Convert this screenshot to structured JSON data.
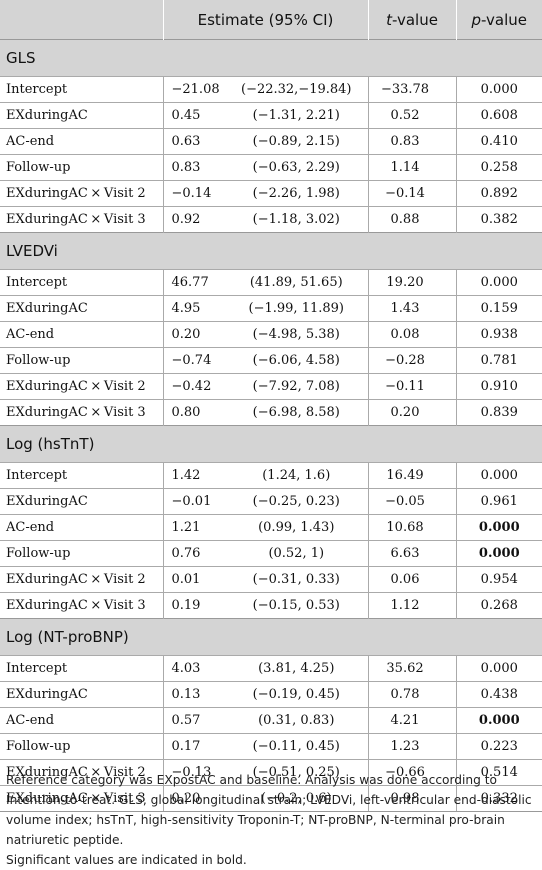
{
  "header": {
    "col_blank": "",
    "col_estimate": "Estimate (95% CI)",
    "col_t_italic": "t",
    "col_t_rest": "-value",
    "col_p_italic": "p",
    "col_p_rest": "-value"
  },
  "sections": [
    {
      "title": "GLS",
      "rows": [
        {
          "label": "Intercept",
          "estimate": "−21.08",
          "ci": "(−22.32,−19.84)",
          "t": "−33.78",
          "p": "0.000",
          "bold": false
        },
        {
          "label": "EXduringAC",
          "estimate": "0.45",
          "ci": "(−1.31, 2.21)",
          "t": "0.52",
          "p": "0.608",
          "bold": false
        },
        {
          "label": "AC-end",
          "estimate": "0.63",
          "ci": "(−0.89, 2.15)",
          "t": "0.83",
          "p": "0.410",
          "bold": false
        },
        {
          "label": "Follow-up",
          "estimate": "0.83",
          "ci": "(−0.63, 2.29)",
          "t": "1.14",
          "p": "0.258",
          "bold": false
        },
        {
          "label": "EXduringAC × Visit 2",
          "estimate": "−0.14",
          "ci": "(−2.26, 1.98)",
          "t": "−0.14",
          "p": "0.892",
          "bold": false
        },
        {
          "label": "EXduringAC × Visit 3",
          "estimate": "0.92",
          "ci": "(−1.18, 3.02)",
          "t": "0.88",
          "p": "0.382",
          "bold": false
        }
      ]
    },
    {
      "title": "LVEDVi",
      "rows": [
        {
          "label": "Intercept",
          "estimate": "46.77",
          "ci": "(41.89, 51.65)",
          "t": "19.20",
          "p": "0.000",
          "bold": false
        },
        {
          "label": "EXduringAC",
          "estimate": "4.95",
          "ci": "(−1.99, 11.89)",
          "t": "1.43",
          "p": "0.159",
          "bold": false
        },
        {
          "label": "AC-end",
          "estimate": "0.20",
          "ci": "(−4.98, 5.38)",
          "t": "0.08",
          "p": "0.938",
          "bold": false
        },
        {
          "label": "Follow-up",
          "estimate": "−0.74",
          "ci": "(−6.06, 4.58)",
          "t": "−0.28",
          "p": "0.781",
          "bold": false
        },
        {
          "label": "EXduringAC × Visit 2",
          "estimate": "−0.42",
          "ci": "(−7.92, 7.08)",
          "t": "−0.11",
          "p": "0.910",
          "bold": false
        },
        {
          "label": "EXduringAC × Visit 3",
          "estimate": "0.80",
          "ci": "(−6.98, 8.58)",
          "t": "0.20",
          "p": "0.839",
          "bold": false
        }
      ]
    },
    {
      "title": "Log (hsTnT)",
      "rows": [
        {
          "label": "Intercept",
          "estimate": "1.42",
          "ci": "(1.24, 1.6)",
          "t": "16.49",
          "p": "0.000",
          "bold": false
        },
        {
          "label": "EXduringAC",
          "estimate": "−0.01",
          "ci": "(−0.25, 0.23)",
          "t": "−0.05",
          "p": "0.961",
          "bold": false
        },
        {
          "label": "AC-end",
          "estimate": "1.21",
          "ci": "(0.99, 1.43)",
          "t": "10.68",
          "p": "0.000",
          "bold": true
        },
        {
          "label": "Follow-up",
          "estimate": "0.76",
          "ci": "(0.52, 1)",
          "t": "6.63",
          "p": "0.000",
          "bold": true
        },
        {
          "label": "EXduringAC × Visit 2",
          "estimate": "0.01",
          "ci": "(−0.31, 0.33)",
          "t": "0.06",
          "p": "0.954",
          "bold": false
        },
        {
          "label": "EXduringAC × Visit 3",
          "estimate": "0.19",
          "ci": "(−0.15, 0.53)",
          "t": "1.12",
          "p": "0.268",
          "bold": false
        }
      ]
    },
    {
      "title": "Log (NT-proBNP)",
      "rows": [
        {
          "label": "Intercept",
          "estimate": "4.03",
          "ci": "(3.81, 4.25)",
          "t": "35.62",
          "p": "0.000",
          "bold": false
        },
        {
          "label": "EXduringAC",
          "estimate": "0.13",
          "ci": "(−0.19, 0.45)",
          "t": "0.78",
          "p": "0.438",
          "bold": false
        },
        {
          "label": "AC-end",
          "estimate": "0.57",
          "ci": "(0.31, 0.83)",
          "t": "4.21",
          "p": "0.000",
          "bold": true
        },
        {
          "label": "Follow-up",
          "estimate": "0.17",
          "ci": "(−0.11, 0.45)",
          "t": "1.23",
          "p": "0.223",
          "bold": false
        },
        {
          "label": "EXduringAC × Visit 2",
          "estimate": "−0.13",
          "ci": "(−0.51, 0.25)",
          "t": "−0.66",
          "p": "0.514",
          "bold": false
        },
        {
          "label": "EXduringAC × Visit 3",
          "estimate": "0.20",
          "ci": "(−0.2, 0.6)",
          "t": "0.98",
          "p": "0.332",
          "bold": false
        }
      ]
    }
  ],
  "footnotes": {
    "note1": "Reference category was EXpostAC and baseline. Analysis was done according to Intention-to-treat. GLS, global longitudinal strain; LVEDVi, left-ventricular end-diastolic volume index; hsTnT, high-sensitivity Troponin-T; NT-proBNP, N-terminal pro-brain natriuretic peptide.",
    "note2": "Significant values are indicated in bold."
  }
}
